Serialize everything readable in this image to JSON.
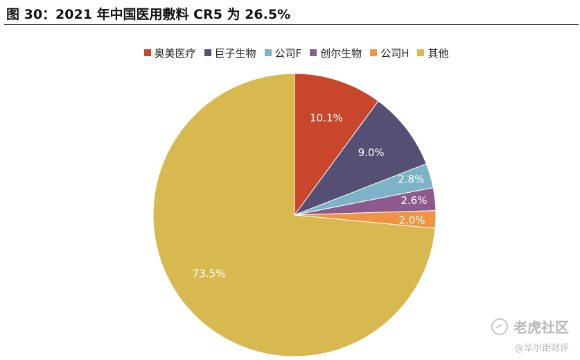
{
  "title": "图 30：2021 年中国医用敷料 CR5 为 26.5%",
  "watermark": {
    "main": "老虎社区",
    "sub": "@华尔街财评"
  },
  "chart_data": {
    "type": "pie",
    "title": "图 30：2021 年中国医用敷料 CR5 为 26.5%",
    "start_angle_deg": 0,
    "direction": "clockwise",
    "legend_position": "top",
    "slices": [
      {
        "name": "奥美医疗",
        "label": "奥美医疗",
        "value": 10.1,
        "value_label": "10.1%",
        "color": "#c8462c"
      },
      {
        "name": "巨子生物",
        "label": "巨子生物",
        "value": 9.0,
        "value_label": "9.0%",
        "color": "#544f73"
      },
      {
        "name": "公司F",
        "label": "公司F",
        "value": 2.8,
        "value_label": "2.8%",
        "color": "#7db3c6"
      },
      {
        "name": "创尔生物",
        "label": "创尔生物",
        "value": 2.6,
        "value_label": "2.6%",
        "color": "#8d5a8d"
      },
      {
        "name": "公司H",
        "label": "公司H",
        "value": 2.0,
        "value_label": "2.0%",
        "color": "#ef9442"
      },
      {
        "name": "其他",
        "label": "其他",
        "value": 73.5,
        "value_label": "73.5%",
        "color": "#d8b94f"
      }
    ]
  }
}
